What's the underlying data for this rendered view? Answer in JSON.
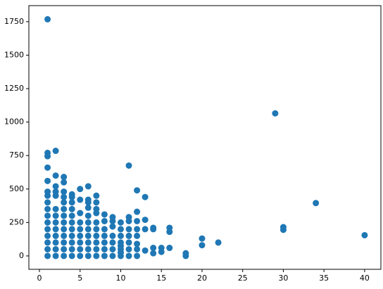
{
  "chart_data": {
    "type": "scatter",
    "color": "#1f77b4",
    "xlim": [
      -1.3,
      42
    ],
    "ylim": [
      -100,
      1870
    ],
    "xticks": [
      0,
      5,
      10,
      15,
      20,
      25,
      30,
      35,
      40
    ],
    "yticks": [
      0,
      250,
      500,
      750,
      1000,
      1250,
      1500,
      1750
    ],
    "x": [
      1,
      1,
      1,
      1,
      1,
      1,
      1,
      1,
      1,
      1,
      1,
      1,
      1,
      1,
      1,
      1,
      2,
      2,
      2,
      2,
      2,
      2,
      2,
      2,
      2,
      2,
      2,
      2,
      2,
      3,
      3,
      3,
      3,
      3,
      3,
      3,
      3,
      3,
      3,
      3,
      3,
      3,
      4,
      4,
      4,
      4,
      4,
      4,
      4,
      4,
      4,
      4,
      4,
      5,
      5,
      5,
      5,
      5,
      5,
      5,
      5,
      5,
      6,
      6,
      6,
      6,
      6,
      6,
      6,
      6,
      6,
      6,
      6,
      7,
      7,
      7,
      7,
      7,
      7,
      7,
      7,
      7,
      7,
      8,
      8,
      8,
      8,
      8,
      8,
      8,
      9,
      9,
      9,
      9,
      9,
      9,
      9,
      10,
      10,
      10,
      10,
      10,
      10,
      10,
      10,
      11,
      11,
      11,
      11,
      11,
      11,
      11,
      11,
      12,
      12,
      12,
      12,
      12,
      12,
      12,
      12,
      13,
      13,
      13,
      13,
      14,
      14,
      14,
      14,
      15,
      15,
      16,
      16,
      16,
      18,
      18,
      20,
      20,
      22,
      29,
      30,
      30,
      34,
      40
    ],
    "y": [
      0,
      50,
      100,
      150,
      200,
      250,
      300,
      350,
      400,
      450,
      480,
      560,
      660,
      745,
      770,
      1768,
      0,
      50,
      100,
      150,
      200,
      250,
      300,
      350,
      450,
      480,
      520,
      600,
      785,
      0,
      50,
      100,
      150,
      200,
      250,
      300,
      350,
      400,
      440,
      480,
      550,
      590,
      0,
      50,
      100,
      150,
      200,
      250,
      300,
      350,
      400,
      440,
      460,
      0,
      50,
      100,
      150,
      200,
      250,
      320,
      420,
      500,
      0,
      50,
      100,
      150,
      200,
      250,
      300,
      360,
      400,
      420,
      520,
      0,
      50,
      100,
      150,
      200,
      250,
      320,
      350,
      400,
      450,
      0,
      50,
      100,
      150,
      200,
      260,
      310,
      0,
      50,
      100,
      150,
      220,
      260,
      290,
      0,
      25,
      50,
      75,
      100,
      150,
      200,
      250,
      0,
      50,
      100,
      150,
      200,
      260,
      290,
      675,
      0,
      50,
      90,
      150,
      200,
      260,
      330,
      490,
      40,
      200,
      270,
      440,
      20,
      60,
      200,
      210,
      30,
      60,
      60,
      180,
      210,
      0,
      20,
      80,
      130,
      100,
      1065,
      195,
      215,
      395,
      155
    ]
  }
}
